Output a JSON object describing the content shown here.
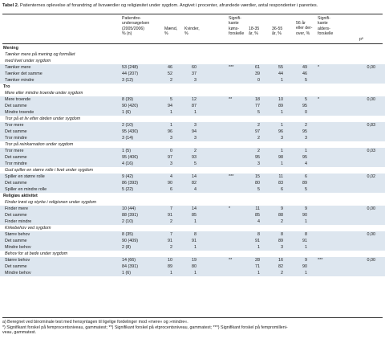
{
  "caption": {
    "label": "Tabel 2.",
    "text": "Patienternes oplevelse af forandring af livsværdier og religiøsitet under sygdom. Angivet i procenter, afrundede værdier, antal respondenter i parentes."
  },
  "headers": {
    "patient": [
      "Patienttre-",
      "undersøgelsen",
      "(2005/2006)",
      "% (n)"
    ],
    "maend": [
      "Mænd,",
      "%"
    ],
    "kvinder": [
      "Kvinder,",
      "%"
    ],
    "sig1": [
      "Signifi-",
      "kante",
      "køns-",
      "forskelle"
    ],
    "age1": [
      "18-35",
      "år, %"
    ],
    "age2": [
      "36-55",
      "år, %"
    ],
    "age3": [
      "56 år",
      "eller der-",
      "over, %"
    ],
    "sig2": [
      "Signifi-",
      "kante",
      "alders-",
      "forskelle"
    ],
    "p": [
      "pᵃ"
    ]
  },
  "rows": [
    {
      "type": "section",
      "label": "Mening"
    },
    {
      "type": "sub",
      "label": "Tænker mere på mening og formålet"
    },
    {
      "type": "sub",
      "label": "med livet under sygdom"
    },
    {
      "type": "data",
      "label": "Tænker mere",
      "pat": "53 (248)",
      "m": "46",
      "k": "60",
      "s1": "***",
      "a1": "61",
      "a2": "55",
      "a3": "49",
      "s2": "*",
      "p": "0,00"
    },
    {
      "type": "data",
      "label": "Tænker det samme",
      "pat": "44 (207)",
      "m": "52",
      "k": "37",
      "s1": "",
      "a1": "39",
      "a2": "44",
      "a3": "46",
      "s2": "",
      "p": ""
    },
    {
      "type": "data",
      "label": "Tænker mindre",
      "pat": "3 (12)",
      "m": "2",
      "k": "3",
      "s1": "",
      "a1": "0",
      "a2": "1",
      "a3": "5",
      "s2": "",
      "p": ""
    },
    {
      "type": "section",
      "label": "Tro"
    },
    {
      "type": "sub",
      "label": "Mere eller mindre troende under sygdom"
    },
    {
      "type": "data",
      "label": "Mere troende",
      "pat": "8 (39)",
      "m": "5",
      "k": "12",
      "s1": "**",
      "a1": "18",
      "a2": "10",
      "a3": "5",
      "s2": "*",
      "p": "0,00"
    },
    {
      "type": "data",
      "label": "Det samme",
      "pat": "90 (420)",
      "m": "94",
      "k": "87",
      "s1": "",
      "a1": "77",
      "a2": "89",
      "a3": "95",
      "s2": "",
      "p": ""
    },
    {
      "type": "data",
      "label": "Mindre troende",
      "pat": "1 (6)",
      "m": "1",
      "k": "1",
      "s1": "",
      "a1": "5",
      "a2": "1",
      "a3": "0",
      "s2": "",
      "p": ""
    },
    {
      "type": "sub",
      "label": "Tror på et liv efter døden under sygdom"
    },
    {
      "type": "data",
      "label": "Tror mere",
      "pat": "2 (10)",
      "m": "1",
      "k": "3",
      "s1": "",
      "a1": "2",
      "a2": "1",
      "a3": "2",
      "s2": "",
      "p": "0,83"
    },
    {
      "type": "data",
      "label": "Det samme",
      "pat": "95 (430)",
      "m": "96",
      "k": "94",
      "s1": "",
      "a1": "97",
      "a2": "96",
      "a3": "95",
      "s2": "",
      "p": ""
    },
    {
      "type": "data",
      "label": "Tror mindre",
      "pat": "3 (14)",
      "m": "3",
      "k": "3",
      "s1": "",
      "a1": "2",
      "a2": "3",
      "a3": "3",
      "s2": "",
      "p": ""
    },
    {
      "type": "sub",
      "label": "Tror på reinkarnation under sygdom"
    },
    {
      "type": "data",
      "label": "Tror mere",
      "pat": "1 (5)",
      "m": "0",
      "k": "2",
      "s1": "",
      "a1": "2",
      "a2": "1",
      "a3": "1",
      "s2": "",
      "p": "0,03"
    },
    {
      "type": "data",
      "label": "Det samme",
      "pat": "95 (406)",
      "m": "97",
      "k": "93",
      "s1": "",
      "a1": "95",
      "a2": "98",
      "a3": "95",
      "s2": "",
      "p": ""
    },
    {
      "type": "data",
      "label": "Tror mindre",
      "pat": "4 (16)",
      "m": "3",
      "k": "5",
      "s1": "",
      "a1": "3",
      "a2": "1",
      "a3": "4",
      "s2": "",
      "p": ""
    },
    {
      "type": "sub",
      "label": "Gud spiller en større rolle i livet under sygdom"
    },
    {
      "type": "data",
      "label": "Spiller en større rolle",
      "pat": "9 (42)",
      "m": "4",
      "k": "14",
      "s1": "***",
      "a1": "15",
      "a2": "11",
      "a3": "6",
      "s2": "",
      "p": "0,02"
    },
    {
      "type": "data",
      "label": "Det samme",
      "pat": "86 (393)",
      "m": "90",
      "k": "82",
      "s1": "",
      "a1": "80",
      "a2": "83",
      "a3": "89",
      "s2": "",
      "p": ""
    },
    {
      "type": "data",
      "label": "Spiller en mindre rolle",
      "pat": "5 (22)",
      "m": "6",
      "k": "4",
      "s1": "",
      "a1": "5",
      "a2": "6",
      "a3": "5",
      "s2": "",
      "p": ""
    },
    {
      "type": "section",
      "label": "Religiøs aktivitet"
    },
    {
      "type": "sub",
      "label": "Finder trøst og styrke i religionen under sygdom"
    },
    {
      "type": "data",
      "label": "Finder mere",
      "pat": "10 (44)",
      "m": "7",
      "k": "14",
      "s1": "*",
      "a1": "11",
      "a2": "9",
      "a3": "9",
      "s2": "",
      "p": "0,00"
    },
    {
      "type": "data",
      "label": "Det samme",
      "pat": "88 (391)",
      "m": "91",
      "k": "85",
      "s1": "",
      "a1": "85",
      "a2": "88",
      "a3": "90",
      "s2": "",
      "p": ""
    },
    {
      "type": "data",
      "label": "Finder mindre",
      "pat": "2 (10)",
      "m": "2",
      "k": "1",
      "s1": "",
      "a1": "4",
      "a2": "2",
      "a3": "1",
      "s2": "",
      "p": ""
    },
    {
      "type": "sub",
      "label": "Kirkebehov ved sygdom"
    },
    {
      "type": "data",
      "label": "Større behov",
      "pat": "8 (35)",
      "m": "7",
      "k": "8",
      "s1": "",
      "a1": "8",
      "a2": "8",
      "a3": "8",
      "s2": "",
      "p": "0,00"
    },
    {
      "type": "data",
      "label": "Det samme",
      "pat": "90 (409)",
      "m": "91",
      "k": "91",
      "s1": "",
      "a1": "91",
      "a2": "89",
      "a3": "91",
      "s2": "",
      "p": ""
    },
    {
      "type": "data",
      "label": "Mindre behov",
      "pat": "2 (8)",
      "m": "2",
      "k": "1",
      "s1": "",
      "a1": "1",
      "a2": "3",
      "a3": "1",
      "s2": "",
      "p": ""
    },
    {
      "type": "sub",
      "label": "Behov for at bede under sygdom"
    },
    {
      "type": "data",
      "label": "Større behov",
      "pat": "14 (66)",
      "m": "10",
      "k": "19",
      "s1": "**",
      "a1": "28",
      "a2": "16",
      "a3": "9",
      "s2": "***",
      "p": "0,00"
    },
    {
      "type": "data",
      "label": "Det samme",
      "pat": "84 (391)",
      "m": "89",
      "k": "80",
      "s1": "",
      "a1": "71",
      "a2": "82",
      "a3": "90",
      "s2": "",
      "p": ""
    },
    {
      "type": "data",
      "label": "Mindre behov",
      "pat": "1 (6)",
      "m": "1",
      "k": "1",
      "s1": "",
      "a1": "1",
      "a2": "2",
      "a3": "1",
      "s2": "",
      "p": ""
    }
  ],
  "notes": [
    "a) Beregnet ved binominale test med hensyntagen til ligelige fordelinger mod »mere« og »mindre«.",
    "*) Signifikant forskel på femprocentsniveau, gammatest; **) Signifikant forskel på etprocentsniveau, gammatest; ***) Signifikant forskel på fempromilleni-",
    "veau, gammatest."
  ]
}
